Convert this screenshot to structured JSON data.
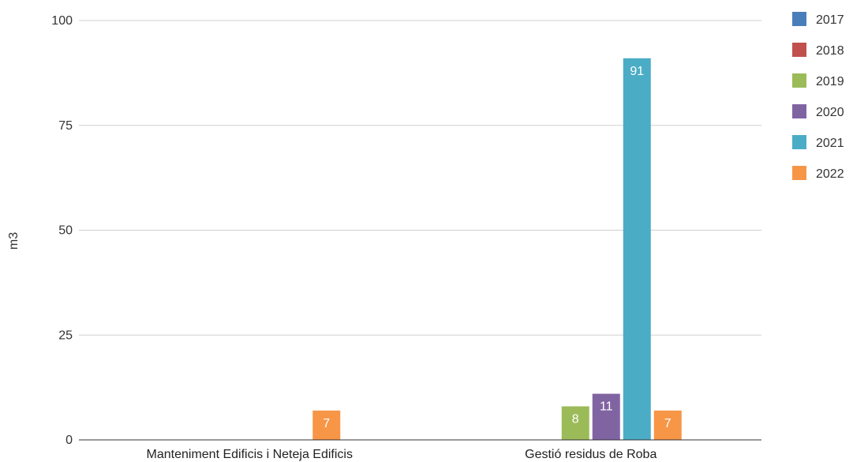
{
  "chart_data": {
    "type": "bar",
    "title": "",
    "xlabel": "",
    "ylabel": "m3",
    "ylim": [
      0,
      100
    ],
    "yticks": [
      "0",
      "25",
      "50",
      "75",
      "100"
    ],
    "grid": true,
    "legend_position": "right",
    "categories": [
      "Manteniment Edificis i Neteja Edificis",
      "Gestió residus de Roba"
    ],
    "series": [
      {
        "name": "2017",
        "color": "#4a7ebb",
        "values": [
          null,
          null
        ],
        "labels": [
          "",
          ""
        ]
      },
      {
        "name": "2018",
        "color": "#c0504d",
        "values": [
          null,
          null
        ],
        "labels": [
          "",
          ""
        ]
      },
      {
        "name": "2019",
        "color": "#9bbb59",
        "values": [
          null,
          8
        ],
        "labels": [
          "",
          "8"
        ]
      },
      {
        "name": "2020",
        "color": "#8064a2",
        "values": [
          null,
          11
        ],
        "labels": [
          "",
          "11"
        ]
      },
      {
        "name": "2021",
        "color": "#4bacc6",
        "values": [
          null,
          91
        ],
        "labels": [
          "",
          "91"
        ]
      },
      {
        "name": "2022",
        "color": "#f79646",
        "values": [
          7,
          7
        ],
        "labels": [
          "7",
          "7"
        ]
      }
    ]
  }
}
